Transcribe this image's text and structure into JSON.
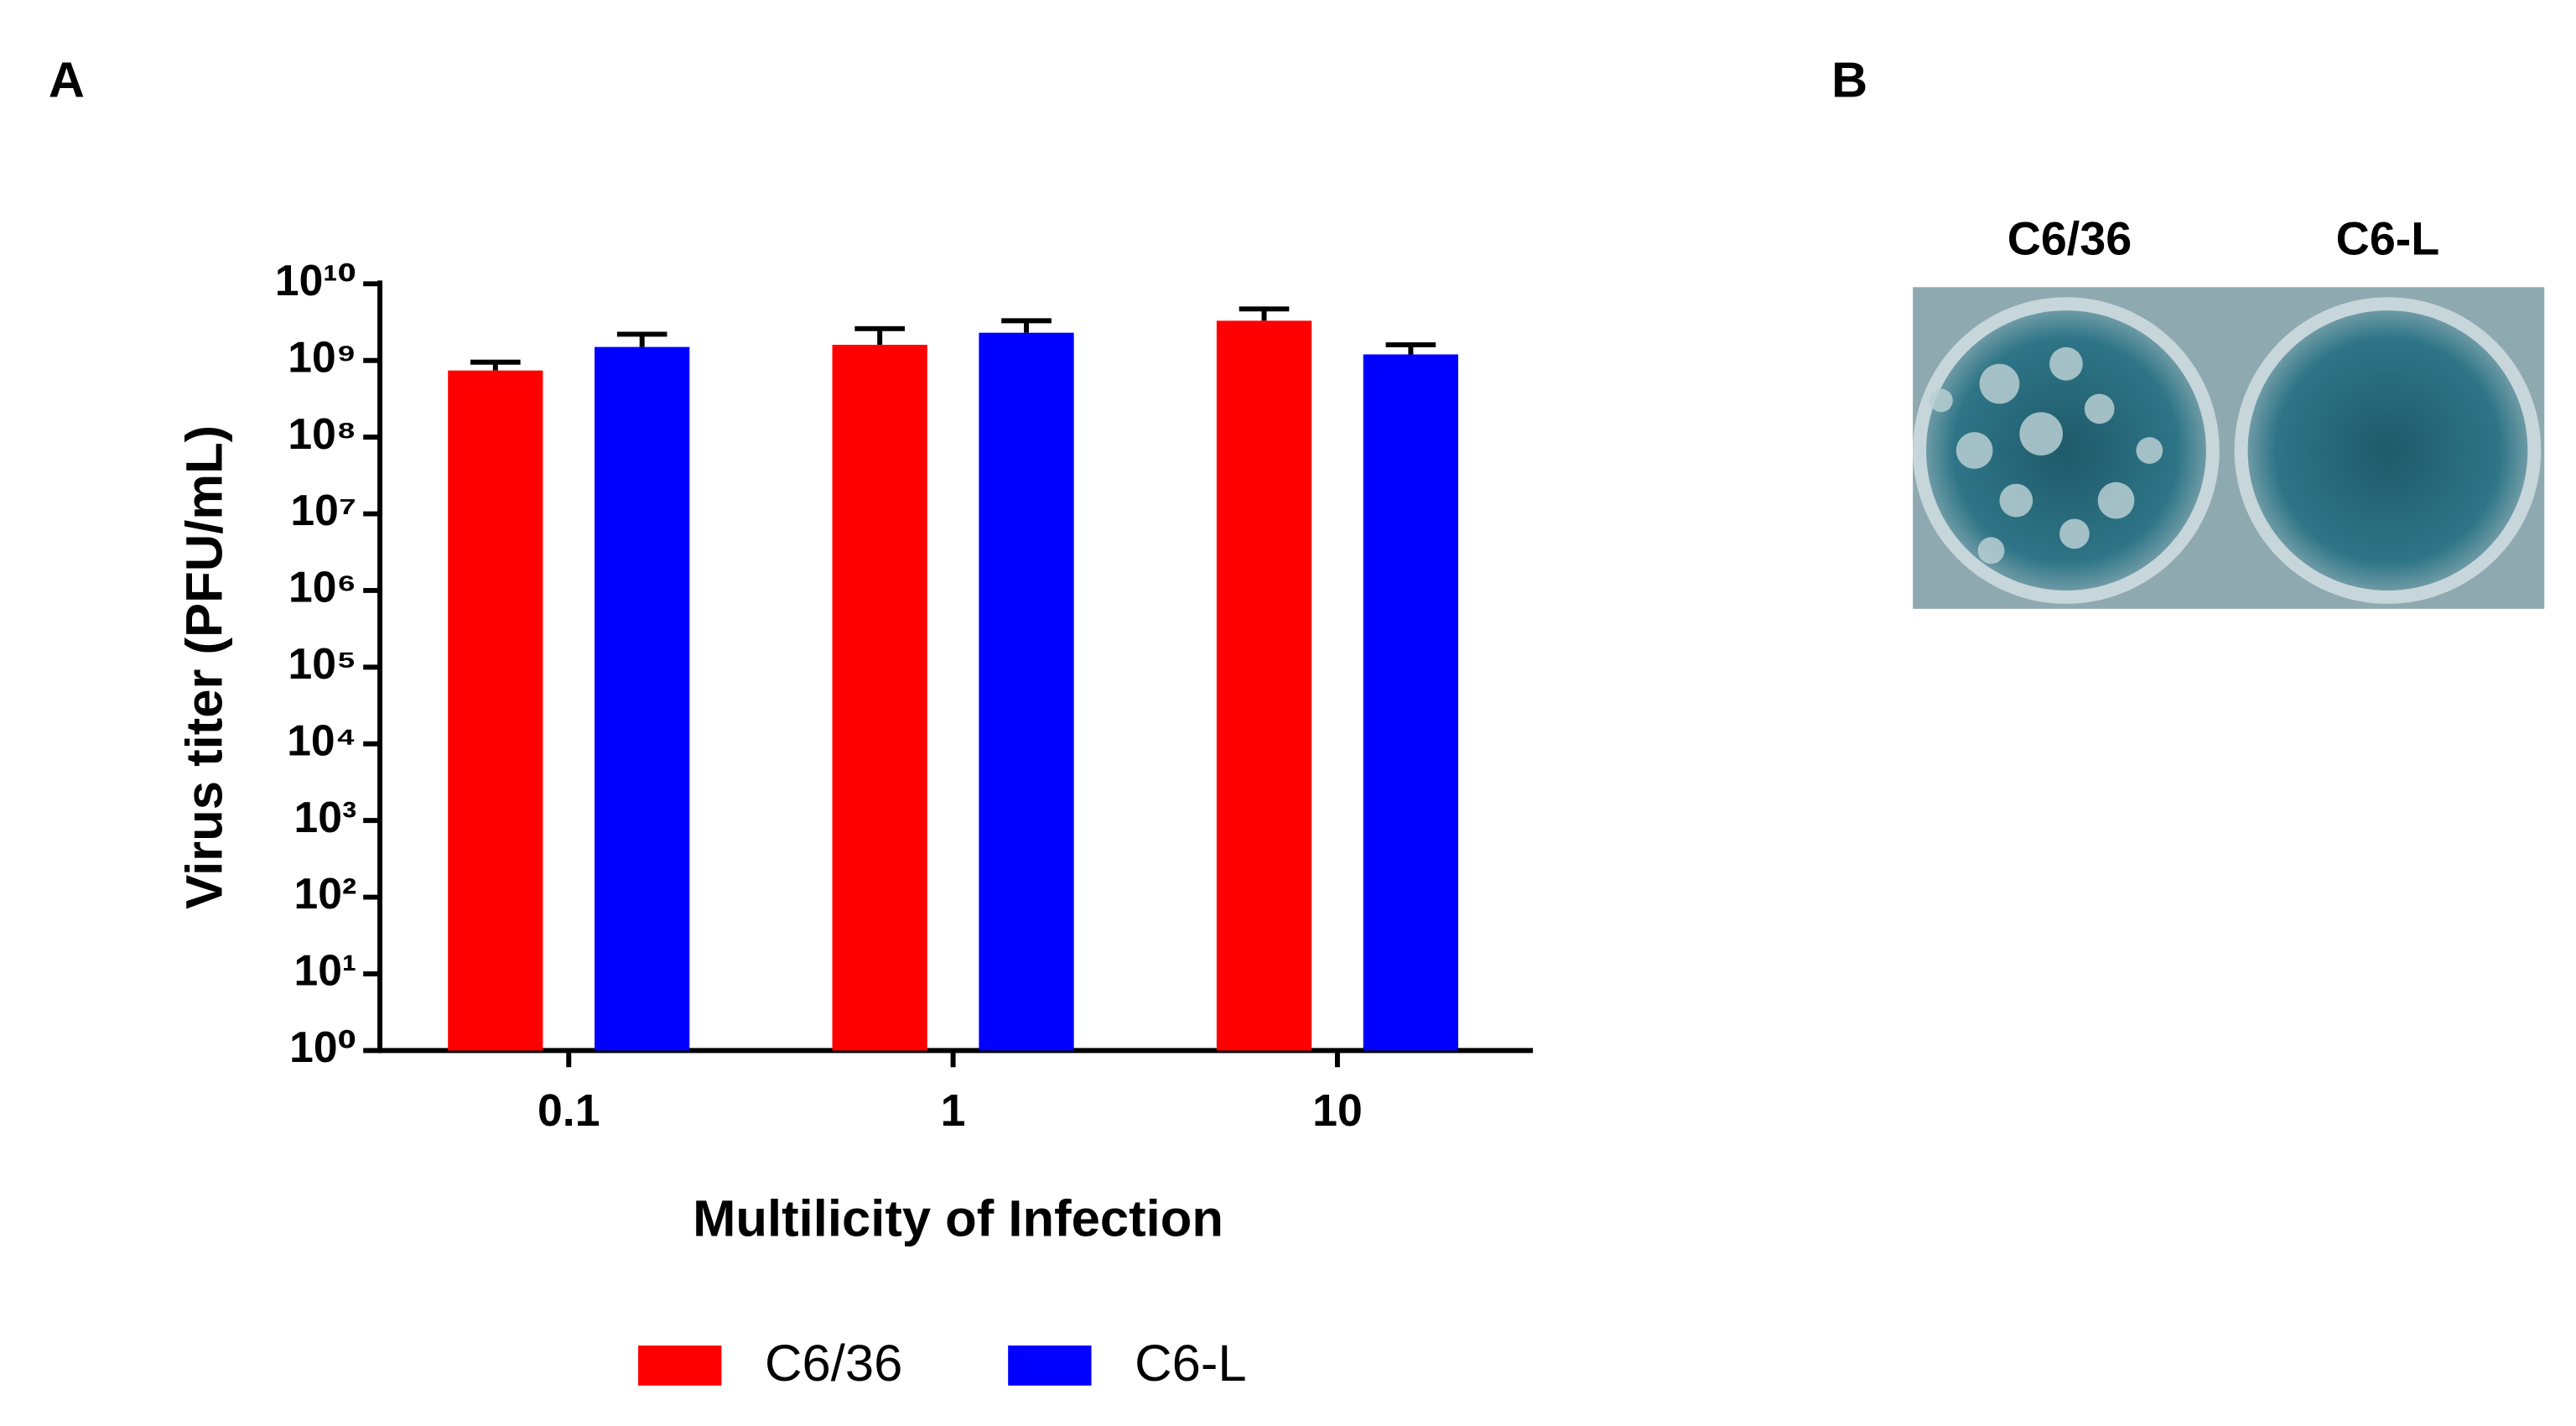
{
  "panel_labels": [
    "A",
    "B"
  ],
  "image": {
    "labels": [
      "C6/36",
      "C6-L"
    ]
  },
  "chart_data": {
    "type": "bar",
    "x_label": "Multilicity of Infection",
    "y_label": "Virus titer (PFU/mL)",
    "categories": [
      "0.1",
      "1",
      "10"
    ],
    "series": [
      {
        "name": "C6/36",
        "color": "#ff0000",
        "values": [
          740000000,
          1600000000,
          3300000000
        ],
        "errors": [
          210000000,
          1000000000,
          1400000000
        ]
      },
      {
        "name": "C6-L",
        "color": "#0000ff",
        "values": [
          1500000000,
          2300000000,
          1200000000
        ],
        "errors": [
          700000000,
          1000000000,
          400000000
        ]
      }
    ],
    "log_y": true,
    "ylim": [
      1,
      10000000000
    ],
    "yticks": [
      {
        "value": 1,
        "label": "10⁰"
      },
      {
        "value": 10,
        "label": "10¹"
      },
      {
        "value": 100,
        "label": "10²"
      },
      {
        "value": 1000,
        "label": "10³"
      },
      {
        "value": 10000,
        "label": "10⁴"
      },
      {
        "value": 100000,
        "label": "10⁵"
      },
      {
        "value": 1000000,
        "label": "10⁶"
      },
      {
        "value": 10000000,
        "label": "10⁷"
      },
      {
        "value": 100000000,
        "label": "10⁸"
      },
      {
        "value": 1000000000,
        "label": "10⁹"
      },
      {
        "value": 10000000000,
        "label": "10¹⁰"
      }
    ],
    "legend": "bottom"
  }
}
